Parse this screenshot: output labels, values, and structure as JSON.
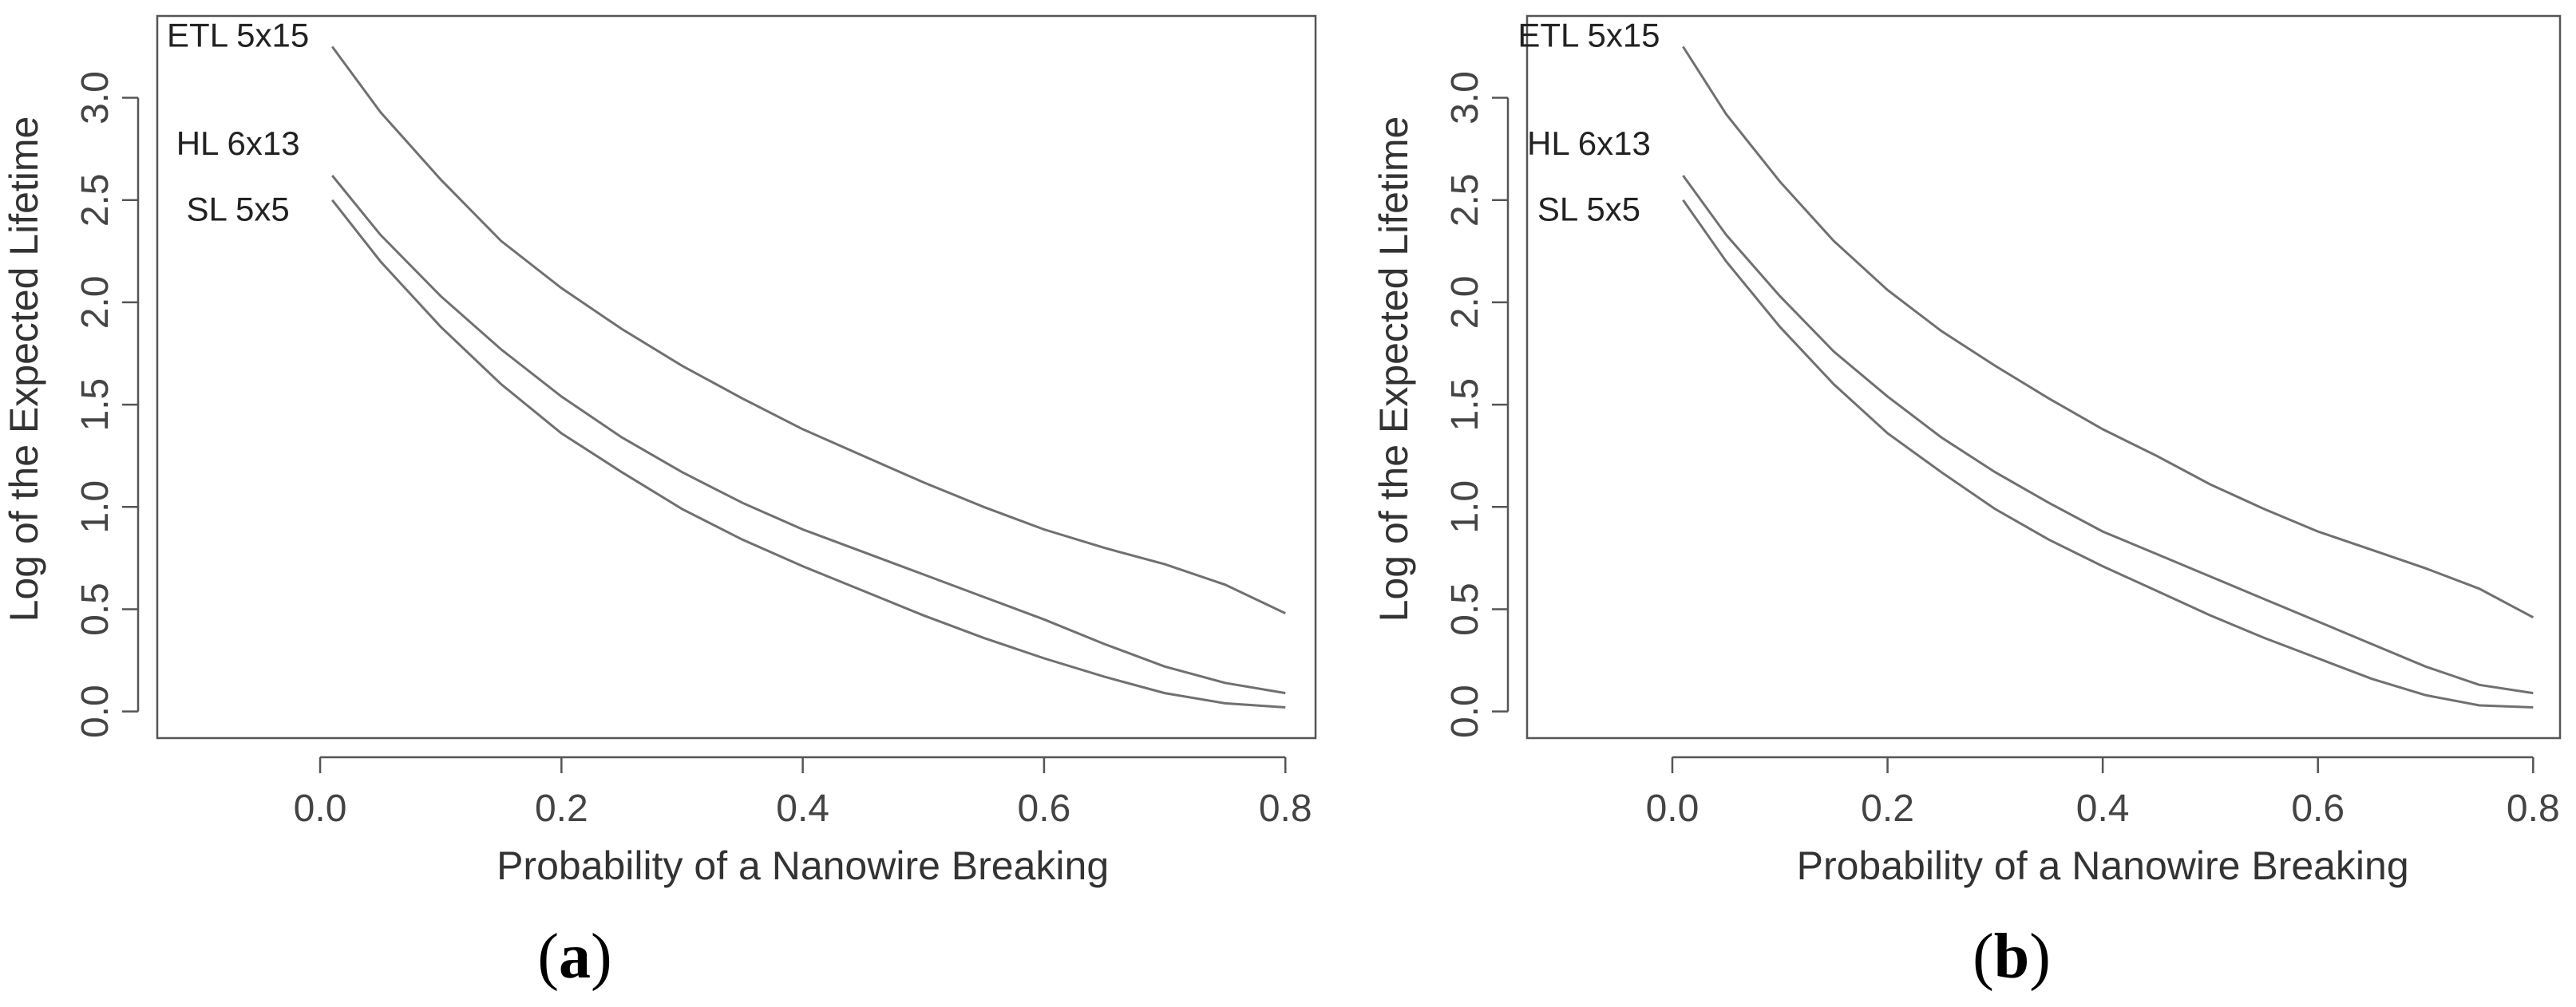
{
  "chart_data": [
    {
      "type": "line",
      "panel_label": "(a)",
      "panel_letter": "a",
      "xlabel": "Probability of a Nanowire Breaking",
      "ylabel": "Log of the Expected Lifetime",
      "xlim": [
        -0.135,
        0.825
      ],
      "ylim": [
        -0.13,
        3.4
      ],
      "xticks": [
        "0.0",
        "0.2",
        "0.4",
        "0.6",
        "0.8"
      ],
      "yticks": [
        "0.0",
        "0.5",
        "1.0",
        "1.5",
        "2.0",
        "2.5",
        "3.0"
      ],
      "grid": false,
      "series": [
        {
          "name": "ETL 5x15",
          "x": [
            0.01,
            0.05,
            0.1,
            0.15,
            0.2,
            0.25,
            0.3,
            0.35,
            0.4,
            0.45,
            0.5,
            0.55,
            0.6,
            0.65,
            0.7,
            0.75,
            0.8
          ],
          "y": [
            3.25,
            2.93,
            2.6,
            2.3,
            2.07,
            1.87,
            1.69,
            1.53,
            1.38,
            1.25,
            1.12,
            1.0,
            0.89,
            0.8,
            0.72,
            0.62,
            0.48
          ]
        },
        {
          "name": "HL 6x13",
          "x": [
            0.01,
            0.05,
            0.1,
            0.15,
            0.2,
            0.25,
            0.3,
            0.35,
            0.4,
            0.45,
            0.5,
            0.55,
            0.6,
            0.65,
            0.7,
            0.75,
            0.8
          ],
          "y": [
            2.62,
            2.33,
            2.03,
            1.77,
            1.54,
            1.34,
            1.17,
            1.02,
            0.89,
            0.78,
            0.67,
            0.56,
            0.45,
            0.33,
            0.22,
            0.14,
            0.09
          ]
        },
        {
          "name": "SL 5x5",
          "x": [
            0.01,
            0.05,
            0.1,
            0.15,
            0.2,
            0.25,
            0.3,
            0.35,
            0.4,
            0.45,
            0.5,
            0.55,
            0.6,
            0.65,
            0.7,
            0.75,
            0.8
          ],
          "y": [
            2.5,
            2.2,
            1.88,
            1.6,
            1.36,
            1.17,
            0.99,
            0.84,
            0.71,
            0.59,
            0.47,
            0.36,
            0.26,
            0.17,
            0.09,
            0.04,
            0.02
          ]
        }
      ]
    },
    {
      "type": "line",
      "panel_label": "(b)",
      "panel_letter": "b",
      "xlabel": "Probability of a Nanowire Breaking",
      "ylabel": "Log of the Expected Lifetime",
      "xlim": [
        -0.135,
        0.825
      ],
      "ylim": [
        -0.13,
        3.4
      ],
      "xticks": [
        "0.0",
        "0.2",
        "0.4",
        "0.6",
        "0.8"
      ],
      "yticks": [
        "0.0",
        "0.5",
        "1.0",
        "1.5",
        "2.0",
        "2.5",
        "3.0"
      ],
      "grid": false,
      "series": [
        {
          "name": "ETL 5x15",
          "x": [
            0.01,
            0.05,
            0.1,
            0.15,
            0.2,
            0.25,
            0.3,
            0.35,
            0.4,
            0.45,
            0.5,
            0.55,
            0.6,
            0.65,
            0.7,
            0.75,
            0.8
          ],
          "y": [
            3.25,
            2.92,
            2.59,
            2.3,
            2.06,
            1.86,
            1.69,
            1.53,
            1.38,
            1.25,
            1.11,
            0.99,
            0.88,
            0.79,
            0.7,
            0.6,
            0.46
          ]
        },
        {
          "name": "HL 6x13",
          "x": [
            0.01,
            0.05,
            0.1,
            0.15,
            0.2,
            0.25,
            0.3,
            0.35,
            0.4,
            0.45,
            0.5,
            0.55,
            0.6,
            0.65,
            0.7,
            0.75,
            0.8
          ],
          "y": [
            2.62,
            2.33,
            2.03,
            1.76,
            1.54,
            1.34,
            1.17,
            1.02,
            0.88,
            0.77,
            0.66,
            0.55,
            0.44,
            0.33,
            0.22,
            0.13,
            0.09
          ]
        },
        {
          "name": "SL 5x5",
          "x": [
            0.01,
            0.05,
            0.1,
            0.15,
            0.2,
            0.25,
            0.3,
            0.35,
            0.4,
            0.45,
            0.5,
            0.55,
            0.6,
            0.65,
            0.7,
            0.75,
            0.8
          ],
          "y": [
            2.5,
            2.2,
            1.88,
            1.6,
            1.36,
            1.17,
            0.99,
            0.84,
            0.71,
            0.59,
            0.47,
            0.36,
            0.26,
            0.16,
            0.08,
            0.03,
            0.02
          ]
        }
      ]
    }
  ]
}
